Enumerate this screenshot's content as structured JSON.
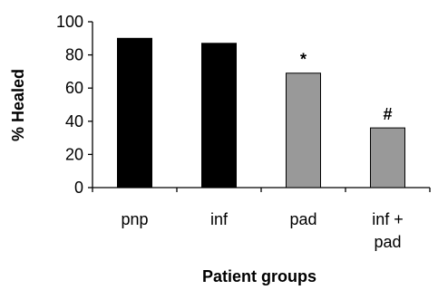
{
  "chart_data": {
    "type": "bar",
    "categories": [
      [
        "pnp"
      ],
      [
        "inf"
      ],
      [
        "pad"
      ],
      [
        "inf +",
        "pad"
      ]
    ],
    "values": [
      90,
      87,
      69,
      36
    ],
    "bar_colors": [
      "#000000",
      "#000000",
      "#999999",
      "#999999"
    ],
    "annotations": [
      "",
      "",
      "*",
      "#"
    ],
    "xlabel": "Patient groups",
    "ylabel": "% Healed",
    "ylim": [
      0,
      100
    ],
    "yticks": [
      0,
      20,
      40,
      60,
      80,
      100
    ],
    "grid": false
  }
}
